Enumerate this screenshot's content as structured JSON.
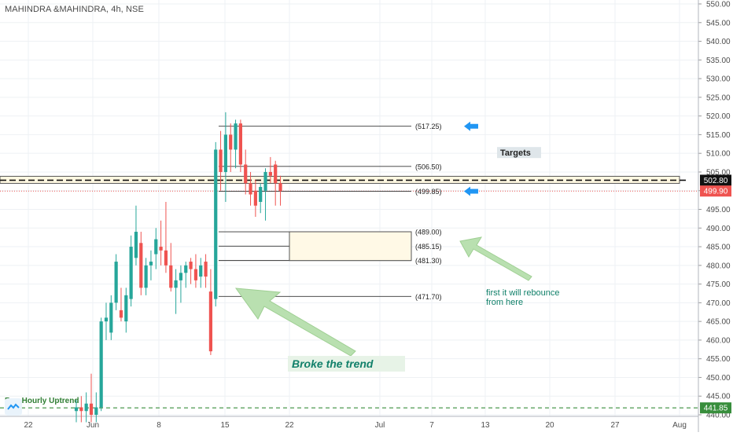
{
  "title": "MAHINDRA &MAHINDRA, 4h, NSE",
  "colors": {
    "up": "#26a69a",
    "down": "#ef5350",
    "grid": "#eef1f4",
    "axis_text": "#4d4d4d",
    "arrow_blue": "#2196f3",
    "green_arrow": "#b9e0b0",
    "green_text": "#11806a",
    "buy_line": "#388e3c",
    "last_price_bg": "#ef5350",
    "level_bg": "#111111"
  },
  "chart_data": {
    "type": "candlestick",
    "title": "MAHINDRA &MAHINDRA, 4h, NSE",
    "ylim": [
      438,
      552
    ],
    "yticks": [
      440,
      445,
      450,
      455,
      460,
      465,
      470,
      475,
      480,
      485,
      490,
      495,
      500,
      505,
      510,
      515,
      520,
      525,
      530,
      535,
      540,
      545,
      550
    ],
    "x_ticks": [
      "22",
      "Jun",
      "8",
      "15",
      "22",
      "Jul",
      "7",
      "13",
      "20",
      "27",
      "Aug"
    ],
    "grid": true,
    "candles": [
      {
        "o": 441.0,
        "h": 444.0,
        "l": 438.0,
        "c": 442.0
      },
      {
        "o": 442.0,
        "h": 445.0,
        "l": 438.0,
        "c": 441.0
      },
      {
        "o": 441.0,
        "h": 446.0,
        "l": 438.0,
        "c": 443.0
      },
      {
        "o": 443.0,
        "h": 451.0,
        "l": 438.0,
        "c": 440.0
      },
      {
        "o": 440.0,
        "h": 446.0,
        "l": 438.0,
        "c": 442.0
      },
      {
        "o": 442.0,
        "h": 466.0,
        "l": 441.0,
        "c": 465.0
      },
      {
        "o": 465.0,
        "h": 470.0,
        "l": 460.0,
        "c": 466.0
      },
      {
        "o": 462.0,
        "h": 472.0,
        "l": 460.0,
        "c": 470.0
      },
      {
        "o": 470.0,
        "h": 483.0,
        "l": 468.0,
        "c": 481.0
      },
      {
        "o": 468.0,
        "h": 474.0,
        "l": 465.0,
        "c": 466.0
      },
      {
        "o": 465.0,
        "h": 474.0,
        "l": 462.0,
        "c": 472.0
      },
      {
        "o": 471.0,
        "h": 488.0,
        "l": 469.0,
        "c": 485.0
      },
      {
        "o": 482.0,
        "h": 496.0,
        "l": 480.0,
        "c": 489.0
      },
      {
        "o": 486.0,
        "h": 489.0,
        "l": 472.0,
        "c": 474.0
      },
      {
        "o": 474.0,
        "h": 482.0,
        "l": 472.0,
        "c": 480.0
      },
      {
        "o": 480.0,
        "h": 484.0,
        "l": 476.0,
        "c": 481.0
      },
      {
        "o": 483.0,
        "h": 490.0,
        "l": 479.0,
        "c": 487.0
      },
      {
        "o": 485.0,
        "h": 492.0,
        "l": 480.0,
        "c": 484.0
      },
      {
        "o": 484.0,
        "h": 497.0,
        "l": 478.0,
        "c": 480.0
      },
      {
        "o": 480.0,
        "h": 486.0,
        "l": 473.0,
        "c": 474.0
      },
      {
        "o": 474.0,
        "h": 479.0,
        "l": 467.0,
        "c": 476.0
      },
      {
        "o": 476.0,
        "h": 480.0,
        "l": 470.0,
        "c": 478.0
      },
      {
        "o": 478.0,
        "h": 481.0,
        "l": 474.0,
        "c": 480.0
      },
      {
        "o": 481.0,
        "h": 482.0,
        "l": 475.0,
        "c": 479.0
      },
      {
        "o": 479.0,
        "h": 483.0,
        "l": 474.0,
        "c": 476.0
      },
      {
        "o": 477.0,
        "h": 482.0,
        "l": 474.0,
        "c": 480.0
      },
      {
        "o": 481.0,
        "h": 483.0,
        "l": 474.0,
        "c": 477.0
      },
      {
        "o": 473.0,
        "h": 479.0,
        "l": 456.0,
        "c": 457.0
      },
      {
        "o": 471.0,
        "h": 513.0,
        "l": 469.0,
        "c": 511.0
      },
      {
        "o": 511.0,
        "h": 516.0,
        "l": 500.0,
        "c": 505.0
      },
      {
        "o": 505.0,
        "h": 521.0,
        "l": 497.0,
        "c": 515.0
      },
      {
        "o": 515.0,
        "h": 518.0,
        "l": 505.0,
        "c": 511.0
      },
      {
        "o": 511.0,
        "h": 519.0,
        "l": 506.0,
        "c": 518.0
      },
      {
        "o": 518.0,
        "h": 519.0,
        "l": 505.0,
        "c": 507.0
      },
      {
        "o": 507.0,
        "h": 511.0,
        "l": 499.0,
        "c": 502.0
      },
      {
        "o": 502.0,
        "h": 505.0,
        "l": 496.0,
        "c": 499.0
      },
      {
        "o": 500.0,
        "h": 503.0,
        "l": 493.0,
        "c": 496.0
      },
      {
        "o": 497.0,
        "h": 502.0,
        "l": 494.0,
        "c": 501.0
      },
      {
        "o": 500.0,
        "h": 506.0,
        "l": 492.0,
        "c": 505.0
      },
      {
        "o": 505.0,
        "h": 509.0,
        "l": 502.0,
        "c": 504.0
      },
      {
        "o": 507.0,
        "h": 508.0,
        "l": 496.0,
        "c": 502.0
      },
      {
        "o": 502.0,
        "h": 504.0,
        "l": 496.0,
        "c": 499.9
      }
    ],
    "levels": [
      {
        "label": "(517.25)",
        "value": 517.25
      },
      {
        "label": "(506.50)",
        "value": 506.5
      },
      {
        "label": "(499.85)",
        "value": 499.85
      },
      {
        "label": "(489.00)",
        "value": 489.0
      },
      {
        "label": "(485.15)",
        "value": 485.15
      },
      {
        "label": "(481.30)",
        "value": 481.3
      },
      {
        "label": "(471.70)",
        "value": 471.7
      }
    ],
    "buy_level": {
      "label": "Buy Hourly Uptrend",
      "value": 441.85,
      "price_label": "441.85"
    },
    "target_line": {
      "value": 502.8,
      "price_label": "502.80"
    },
    "last_price": {
      "value": 499.9,
      "price_label": "499.90"
    },
    "zone": {
      "top": 489.0,
      "bottom": 481.3
    }
  },
  "annotations": {
    "targets": "Targets",
    "rebounce_line1": "first it will rebounce",
    "rebounce_line2": "from here",
    "broke_trend": "Broke the trend"
  }
}
